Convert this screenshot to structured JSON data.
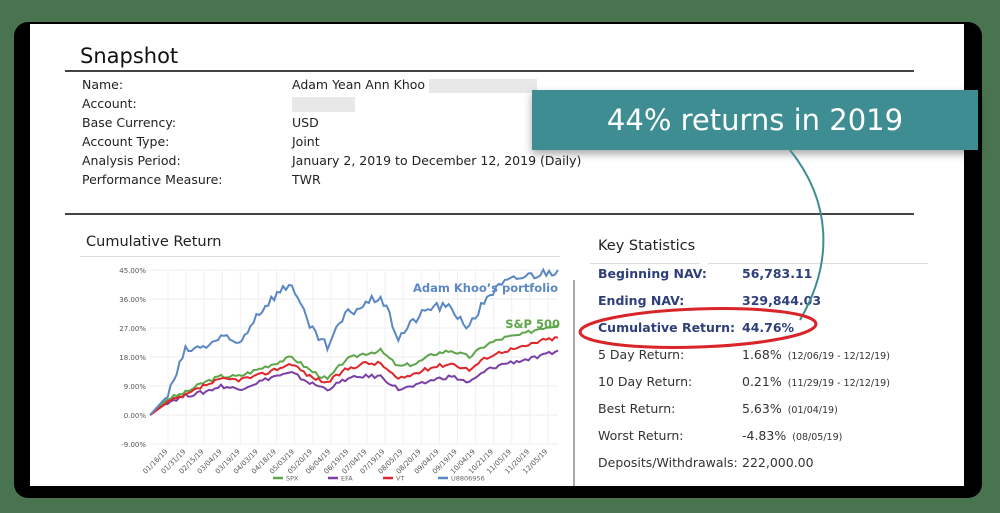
{
  "snapshot": {
    "title": "Snapshot",
    "rows": [
      {
        "label": "Name:",
        "value": "Adam Yean Ann Khoo"
      },
      {
        "label": "Account:",
        "value": ""
      },
      {
        "label": "Base Currency:",
        "value": "USD"
      },
      {
        "label": "Account Type:",
        "value": "Joint"
      },
      {
        "label": "Analysis Period:",
        "value": "January 2, 2019 to December 12, 2019 (Daily)"
      },
      {
        "label": "Performance Measure:",
        "value": "TWR"
      }
    ]
  },
  "callout": {
    "text": "44% returns in 2019",
    "color": "#3e8d92"
  },
  "cumulative_return": {
    "title": "Cumulative Return",
    "annotations": [
      {
        "text": "Adam Khoo’s portfolio",
        "color": "#5b87c5"
      },
      {
        "text": "S&P 500",
        "color": "#5ea64a"
      }
    ],
    "legend": [
      {
        "label": "SPX",
        "color": "#5ea64a"
      },
      {
        "label": "EFA",
        "color": "#7b3fa6"
      },
      {
        "label": "VT",
        "color": "#e0262b"
      },
      {
        "label": "U8806956",
        "color": "#5b87c5"
      }
    ]
  },
  "key_statistics": {
    "title": "Key Statistics",
    "rows": [
      {
        "label": "Beginning NAV:",
        "value": "56,783.11",
        "detail": "",
        "highlight": true
      },
      {
        "label": "Ending NAV:",
        "value": "329,844.03",
        "detail": "",
        "highlight": true
      },
      {
        "label": "Cumulative Return:",
        "value": "44.76%",
        "detail": "",
        "highlight": true
      },
      {
        "label": "5 Day Return:",
        "value": "1.68%",
        "detail": "(12/06/19 - 12/12/19)",
        "highlight": false
      },
      {
        "label": "10 Day Return:",
        "value": "0.21%",
        "detail": "(11/29/19 - 12/12/19)",
        "highlight": false
      },
      {
        "label": "Best Return:",
        "value": "5.63%",
        "detail": "(01/04/19)",
        "highlight": false
      },
      {
        "label": "Worst Return:",
        "value": "-4.83%",
        "detail": "(08/05/19)",
        "highlight": false
      },
      {
        "label": "Deposits/Withdrawals:",
        "value": "222,000.00",
        "detail": "",
        "highlight": false
      }
    ]
  },
  "chart_data": {
    "type": "line",
    "title": "Cumulative Return",
    "xlabel": "",
    "ylabel": "",
    "ylim": [
      -9,
      45
    ],
    "yticks": [
      "45.00%",
      "36.00%",
      "27.00%",
      "18.00%",
      "9.00%",
      "0.00%",
      "-9.00%"
    ],
    "grid": true,
    "legend_position": "bottom",
    "categories": [
      "01/02/19",
      "01/16/19",
      "01/31/19",
      "02/15/19",
      "03/04/19",
      "03/19/19",
      "04/03/19",
      "04/18/19",
      "05/03/19",
      "05/20/19",
      "06/04/19",
      "06/19/19",
      "07/04/19",
      "07/19/19",
      "08/05/19",
      "08/20/19",
      "09/04/19",
      "09/19/19",
      "10/04/19",
      "10/21/19",
      "11/05/19",
      "11/20/19",
      "12/05/19",
      "12/12/19"
    ],
    "x_tick_labels": [
      "01/16/19",
      "01/31/19",
      "02/15/19",
      "03/04/19",
      "03/19/19",
      "04/03/19",
      "04/18/19",
      "05/03/19",
      "05/20/19",
      "06/04/19",
      "06/19/19",
      "07/04/19",
      "07/19/19",
      "08/05/19",
      "08/20/19",
      "09/04/19",
      "09/19/19",
      "10/04/19",
      "10/21/19",
      "11/05/19",
      "11/20/19",
      "12/05/19"
    ],
    "series": [
      {
        "name": "SPX",
        "color": "#5ea64a",
        "values": [
          0,
          5,
          7,
          10,
          12,
          12,
          14,
          16,
          18,
          14,
          11,
          17,
          19,
          20,
          15,
          16,
          19,
          20,
          18,
          22,
          24,
          25,
          27,
          28
        ]
      },
      {
        "name": "EFA",
        "color": "#7b3fa6",
        "values": [
          0,
          4,
          6,
          7,
          9,
          8,
          10,
          12,
          13,
          10,
          8,
          11,
          12,
          12,
          8,
          9,
          11,
          12,
          10,
          14,
          16,
          17,
          18,
          20
        ]
      },
      {
        "name": "VT",
        "color": "#e0262b",
        "values": [
          0,
          4,
          6,
          9,
          11,
          11,
          12,
          14,
          16,
          12,
          10,
          14,
          16,
          16,
          11,
          13,
          15,
          16,
          14,
          18,
          20,
          21,
          23,
          24
        ]
      },
      {
        "name": "U8806956",
        "color": "#5b87c5",
        "values": [
          0,
          6,
          20,
          21,
          24,
          22,
          31,
          37,
          41,
          27,
          21,
          31,
          34,
          37,
          24,
          30,
          34,
          33,
          27,
          37,
          41,
          43,
          44,
          45
        ]
      }
    ],
    "annotations": [
      "Adam Khoo’s portfolio",
      "S&P 500"
    ]
  }
}
